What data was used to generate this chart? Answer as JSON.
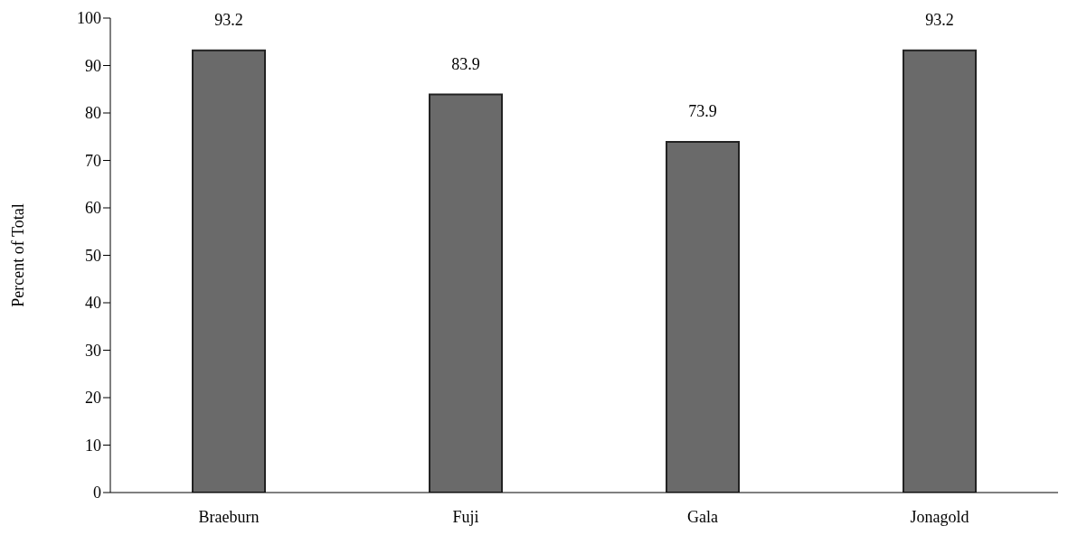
{
  "chart_data": {
    "type": "bar",
    "ylabel": "Percent of Total",
    "categories": [
      "Braeburn",
      "Fuji",
      "Gala",
      "Jonagold"
    ],
    "values": [
      93.2,
      83.9,
      73.9,
      93.2
    ],
    "color": "#6a6a6a",
    "ylim": [
      0,
      100
    ],
    "yticks": [
      0,
      10,
      20,
      30,
      40,
      50,
      60,
      70,
      80,
      90,
      100
    ],
    "data_labels": true,
    "grid": false
  }
}
